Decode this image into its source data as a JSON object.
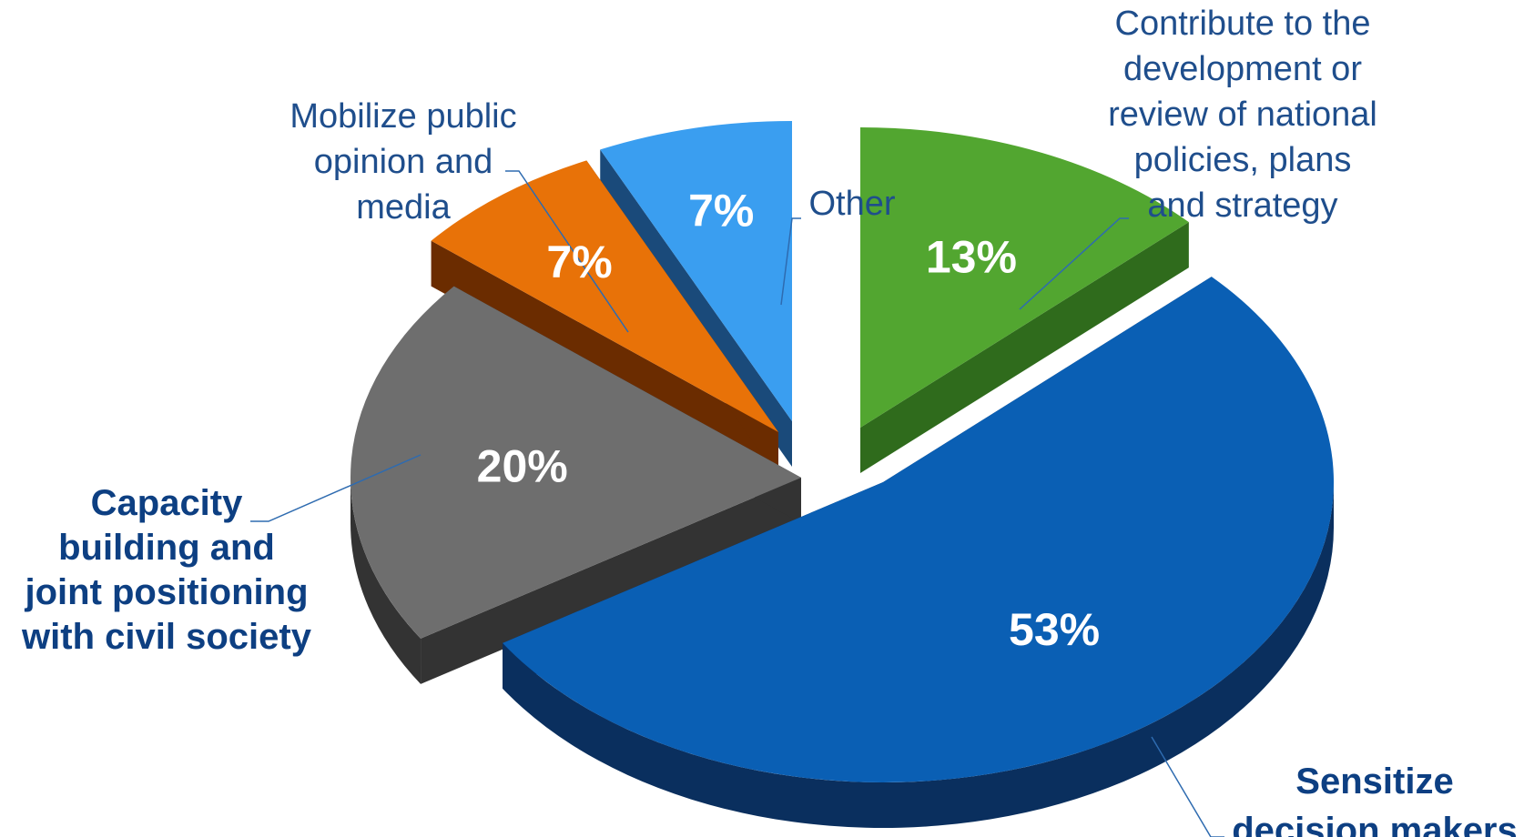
{
  "chart_data": {
    "type": "pie",
    "title": "",
    "legend": "none",
    "style": "3d-exploded",
    "slices": [
      {
        "category": "Contribute to the development or review of national policies, plans and strategy",
        "label_lines": [
          "Contribute to the",
          "development or",
          "review of national",
          "policies, plans",
          "and strategy"
        ],
        "value": 13,
        "value_label": "13%",
        "color": "#52a630",
        "side_color": "#2f6b1c",
        "label_bold": false
      },
      {
        "category": "Sensitize decision makers",
        "label_lines": [
          "Sensitize",
          "decision makers"
        ],
        "value": 53,
        "value_label": "53%",
        "color": "#0a5fb4",
        "side_color": "#0a2f5e",
        "label_bold": true
      },
      {
        "category": "Capacity building and joint positioning with civil society",
        "label_lines": [
          "Capacity",
          "building and",
          "joint positioning",
          "with civil society"
        ],
        "value": 20,
        "value_label": "20%",
        "color": "#6e6e6e",
        "side_color": "#333333",
        "label_bold": true
      },
      {
        "category": "Mobilize public opinion and media",
        "label_lines": [
          "Mobilize public",
          "opinion and",
          "media"
        ],
        "value": 7,
        "value_label": "7%",
        "color": "#e87208",
        "side_color": "#6b2c00",
        "label_bold": false
      },
      {
        "category": "Other",
        "label_lines": [
          "Other"
        ],
        "value": 7,
        "value_label": "7%",
        "color": "#3a9ef0",
        "side_color": "#1a4a7a",
        "label_bold": false
      }
    ]
  }
}
